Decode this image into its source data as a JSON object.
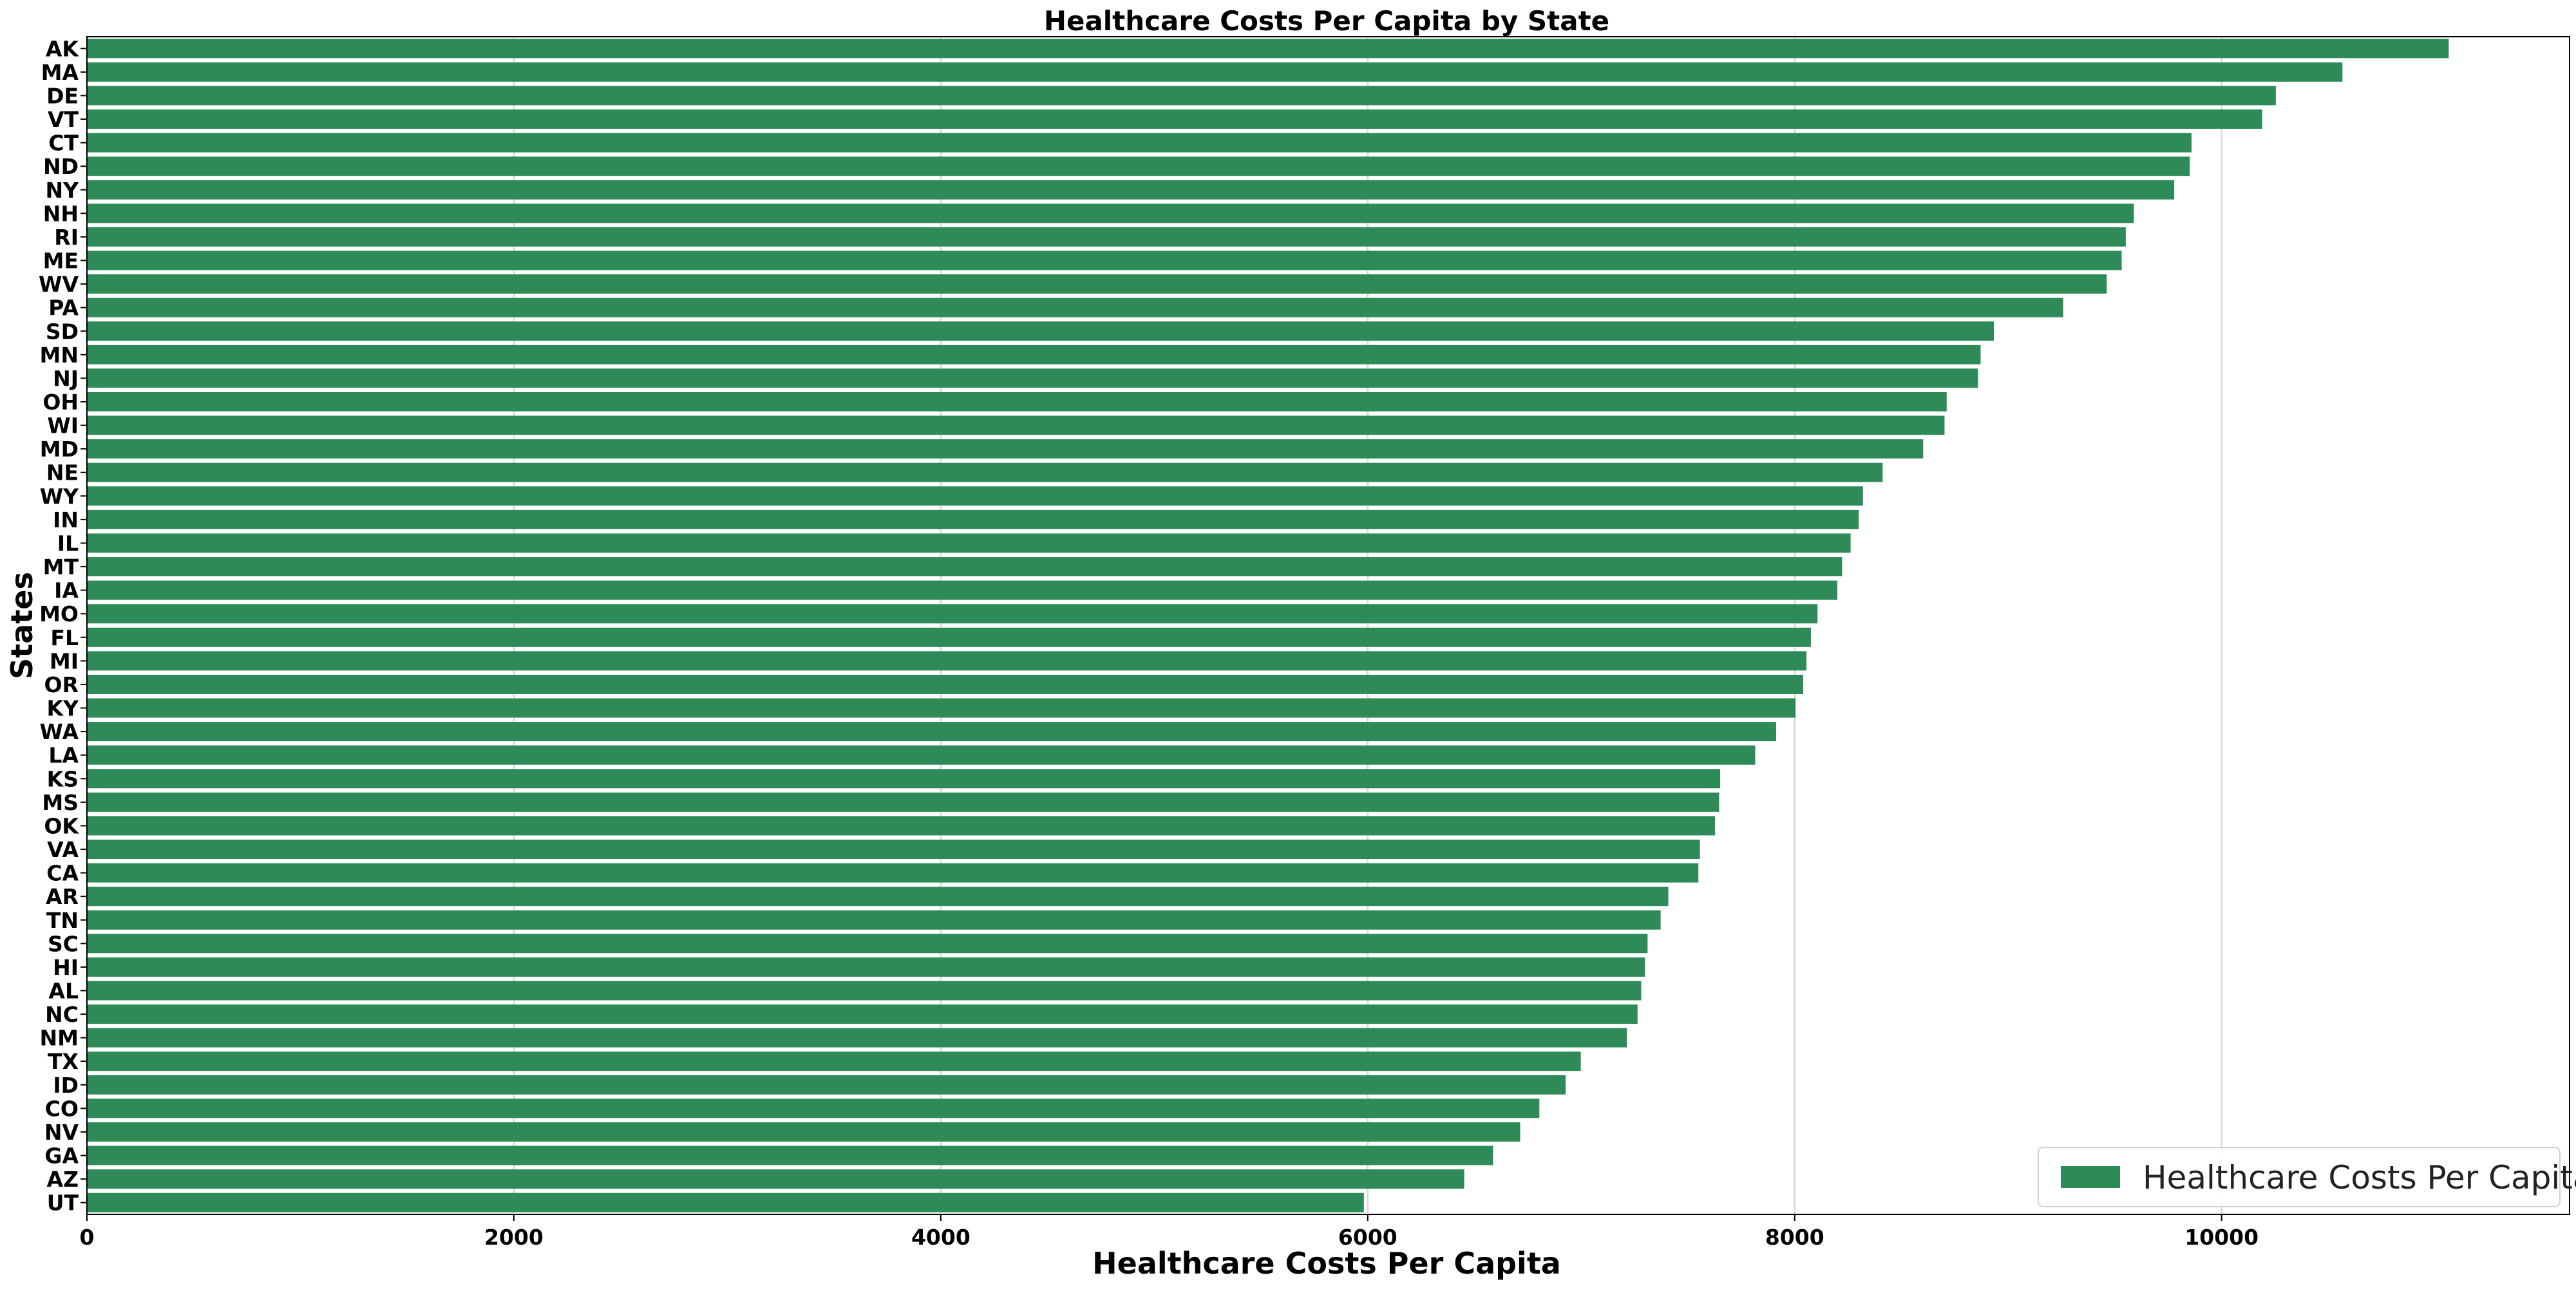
{
  "chart_data": {
    "type": "bar",
    "orientation": "horizontal",
    "title": "Healthcare Costs Per Capita by State",
    "xlabel": "Healthcare Costs Per Capita",
    "ylabel": "States",
    "xlim": [
      0,
      11630
    ],
    "xticks": [
      0,
      2000,
      4000,
      6000,
      8000,
      10000
    ],
    "grid": "vertical",
    "legend_position": "lower-right",
    "bar_color": "#2e8b57",
    "series": [
      {
        "name": "Healthcare Costs Per Capita"
      }
    ],
    "categories": [
      "AK",
      "MA",
      "DE",
      "VT",
      "CT",
      "ND",
      "NY",
      "NH",
      "RI",
      "ME",
      "WV",
      "PA",
      "SD",
      "MN",
      "NJ",
      "OH",
      "WI",
      "MD",
      "NE",
      "WY",
      "IN",
      "IL",
      "MT",
      "IA",
      "MO",
      "FL",
      "MI",
      "OR",
      "KY",
      "WA",
      "LA",
      "KS",
      "MS",
      "OK",
      "VA",
      "CA",
      "AR",
      "TN",
      "SC",
      "HI",
      "AL",
      "NC",
      "NM",
      "TX",
      "ID",
      "CO",
      "NV",
      "GA",
      "AZ",
      "UT"
    ],
    "values": [
      11064,
      10566,
      10254,
      10190,
      9859,
      9851,
      9778,
      9589,
      9551,
      9532,
      9462,
      9258,
      8933,
      8871,
      8859,
      8712,
      8702,
      8602,
      8412,
      8320,
      8300,
      8262,
      8222,
      8200,
      8107,
      8076,
      8055,
      8040,
      8004,
      7913,
      7815,
      7651,
      7646,
      7627,
      7556,
      7549,
      7408,
      7372,
      7311,
      7299,
      7281,
      7264,
      7214,
      6998,
      6927,
      6804,
      6714,
      6587,
      6452,
      5982
    ]
  }
}
